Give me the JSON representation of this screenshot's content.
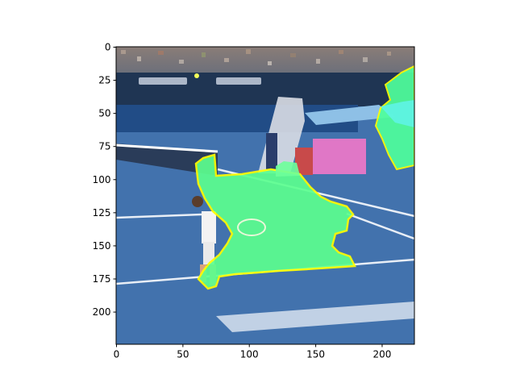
{
  "image": {
    "description_tag": "tennis-court-segmentation-overlay",
    "overlay_color": "#5cff8f",
    "overlay_outline_color": "#ffff00",
    "court_color": "#3f6fa8"
  },
  "axes": {
    "xlim": [
      0,
      224
    ],
    "ylim": [
      224,
      0
    ],
    "x_ticks": [
      {
        "value": 0,
        "label": "0"
      },
      {
        "value": 50,
        "label": "50"
      },
      {
        "value": 100,
        "label": "100"
      },
      {
        "value": 150,
        "label": "150"
      },
      {
        "value": 200,
        "label": "200"
      }
    ],
    "y_ticks": [
      {
        "value": 0,
        "label": "0"
      },
      {
        "value": 25,
        "label": "25"
      },
      {
        "value": 50,
        "label": "50"
      },
      {
        "value": 75,
        "label": "75"
      },
      {
        "value": 100,
        "label": "100"
      },
      {
        "value": 125,
        "label": "125"
      },
      {
        "value": 150,
        "label": "150"
      },
      {
        "value": 175,
        "label": "175"
      },
      {
        "value": 200,
        "label": "200"
      }
    ]
  }
}
